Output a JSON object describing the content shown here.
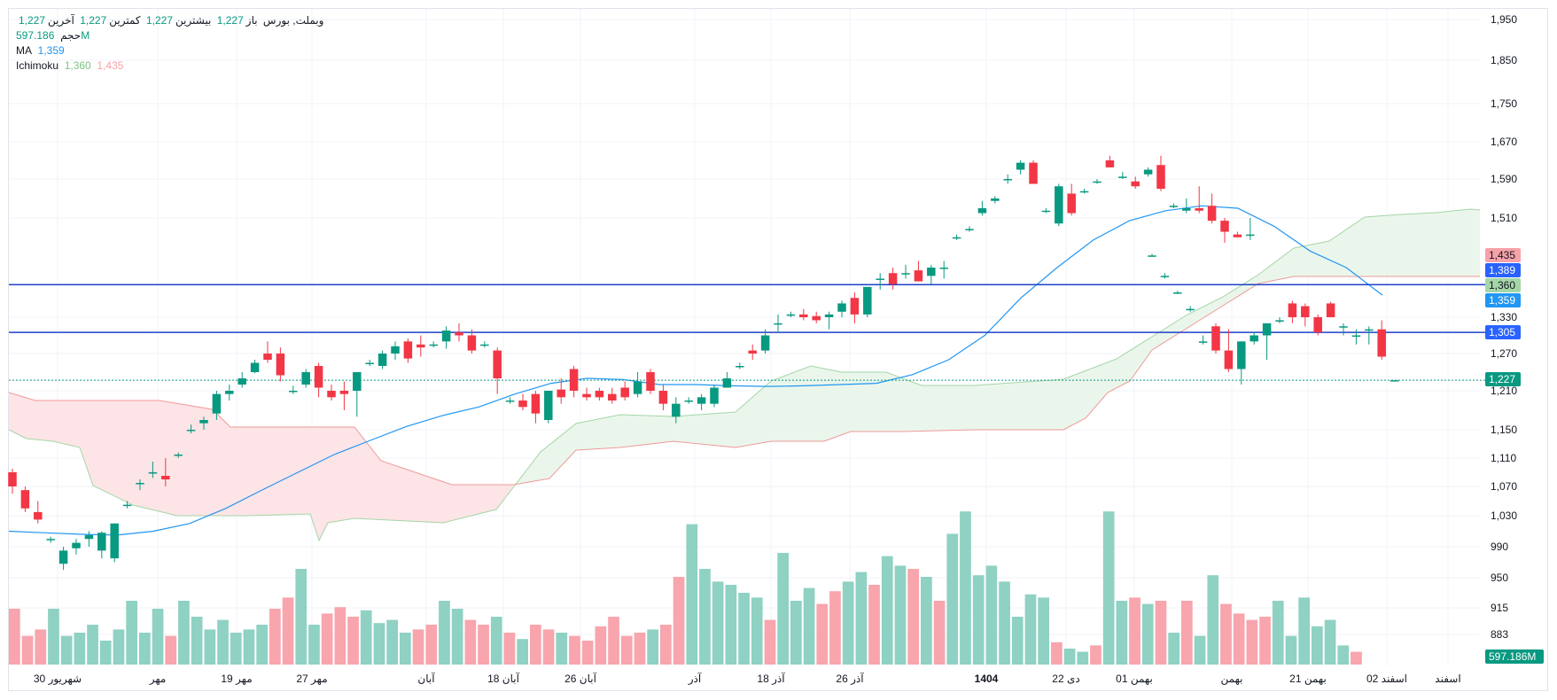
{
  "legend": {
    "symbol": "وبملت, بورس",
    "open_label": "باز",
    "open_value": "1,227",
    "high_label": "بیشترین",
    "high_value": "1,227",
    "low_label": "کمترین",
    "low_value": "1,227",
    "close_label": "آخرین",
    "close_value": "1,227",
    "volume_label": "حجم",
    "volume_value": "597.186M",
    "ma_label": "MA",
    "ma_value": "1,359",
    "ichimoku_label": "Ichimoku",
    "ichimoku_value_1": "1,360",
    "ichimoku_value_2": "1,435"
  },
  "colors": {
    "up": "#089981",
    "down": "#f23645",
    "up_volume": "#8fd1c3",
    "down_volume": "#f8a5ad",
    "ma": "#2196f3",
    "hline": "#1e40c8",
    "cloud_up_fill": "#e8f5e9",
    "cloud_down_fill": "#fde4e6",
    "span_a": "#a5d6a7",
    "span_b": "#ef9a9a"
  },
  "chart_data": {
    "type": "candlestick",
    "symbol": "وبملت",
    "y_axis_ticks": [
      "1,950",
      "1,850",
      "1,750",
      "1,670",
      "1,590",
      "1,510",
      "1,330",
      "1,270",
      "1,210",
      "1,150",
      "1,110",
      "1,070",
      "1,030",
      "990",
      "950",
      "915",
      "883"
    ],
    "x_axis_labels": [
      "30 شهریور",
      "مهر",
      "19 مهر",
      "27 مهر",
      "آبان",
      "18 آبان",
      "26 آبان",
      "آذر",
      "18 آذر",
      "26 آذر",
      "1404",
      "22 دی",
      "01 بهمن",
      "بهمن",
      "21 بهمن",
      "02 اسفند",
      "اسفند"
    ],
    "price_labels": [
      {
        "text": "1,435",
        "kind": "ichimoku_b"
      },
      {
        "text": "1,389",
        "kind": "hline"
      },
      {
        "text": "1,360",
        "kind": "ichimoku_a"
      },
      {
        "text": "1,359",
        "kind": "ma"
      },
      {
        "text": "1,305",
        "kind": "hline"
      },
      {
        "text": "1,227",
        "kind": "last"
      },
      {
        "text": "597.186M",
        "kind": "volume"
      }
    ],
    "horizontal_lines": [
      1389,
      1305
    ],
    "last_price": 1227,
    "candles": [
      [
        1090,
        1095,
        1060,
        1070
      ],
      [
        1065,
        1070,
        1035,
        1040
      ],
      [
        1035,
        1050,
        1020,
        1025
      ],
      [
        1000,
        1003,
        995,
        1000
      ],
      [
        968,
        990,
        960,
        985
      ],
      [
        988,
        1000,
        980,
        995
      ],
      [
        1000,
        1010,
        990,
        1005
      ],
      [
        985,
        1010,
        975,
        1008
      ],
      [
        975,
        1020,
        970,
        1020
      ],
      [
        1045,
        1050,
        1040,
        1045
      ],
      [
        1075,
        1080,
        1065,
        1075
      ],
      [
        1090,
        1105,
        1082,
        1090
      ],
      [
        1085,
        1110,
        1070,
        1080
      ],
      [
        1115,
        1118,
        1110,
        1115
      ],
      [
        1150,
        1158,
        1145,
        1150
      ],
      [
        1160,
        1170,
        1150,
        1165
      ],
      [
        1175,
        1210,
        1165,
        1205
      ],
      [
        1205,
        1220,
        1195,
        1210
      ],
      [
        1220,
        1240,
        1215,
        1230
      ],
      [
        1240,
        1260,
        1238,
        1255
      ],
      [
        1270,
        1290,
        1255,
        1260
      ],
      [
        1270,
        1280,
        1225,
        1235
      ],
      [
        1210,
        1218,
        1205,
        1210
      ],
      [
        1220,
        1245,
        1215,
        1240
      ],
      [
        1250,
        1255,
        1200,
        1215
      ],
      [
        1210,
        1220,
        1195,
        1200
      ],
      [
        1210,
        1225,
        1180,
        1205
      ],
      [
        1210,
        1240,
        1170,
        1240
      ],
      [
        1255,
        1260,
        1250,
        1255
      ],
      [
        1250,
        1275,
        1245,
        1270
      ],
      [
        1270,
        1290,
        1260,
        1282
      ],
      [
        1290,
        1295,
        1255,
        1262
      ],
      [
        1285,
        1300,
        1265,
        1280
      ],
      [
        1285,
        1290,
        1280,
        1285
      ],
      [
        1290,
        1315,
        1278,
        1308
      ],
      [
        1305,
        1320,
        1290,
        1300
      ],
      [
        1300,
        1310,
        1270,
        1275
      ],
      [
        1285,
        1290,
        1280,
        1285
      ],
      [
        1275,
        1280,
        1205,
        1230
      ],
      [
        1195,
        1200,
        1190,
        1195
      ],
      [
        1195,
        1205,
        1180,
        1185
      ],
      [
        1205,
        1210,
        1160,
        1175
      ],
      [
        1165,
        1210,
        1160,
        1210
      ],
      [
        1212,
        1230,
        1190,
        1200
      ],
      [
        1245,
        1250,
        1200,
        1210
      ],
      [
        1205,
        1215,
        1195,
        1200
      ],
      [
        1210,
        1215,
        1195,
        1200
      ],
      [
        1205,
        1215,
        1190,
        1195
      ],
      [
        1215,
        1225,
        1195,
        1200
      ],
      [
        1205,
        1240,
        1200,
        1225
      ],
      [
        1240,
        1245,
        1205,
        1210
      ],
      [
        1210,
        1220,
        1180,
        1190
      ],
      [
        1170,
        1200,
        1160,
        1190
      ],
      [
        1195,
        1200,
        1190,
        1195
      ],
      [
        1190,
        1205,
        1180,
        1200
      ],
      [
        1190,
        1220,
        1185,
        1215
      ],
      [
        1215,
        1240,
        1215,
        1230
      ],
      [
        1250,
        1255,
        1245,
        1250
      ],
      [
        1275,
        1285,
        1260,
        1270
      ],
      [
        1275,
        1310,
        1270,
        1300
      ],
      [
        1320,
        1335,
        1305,
        1320
      ],
      [
        1335,
        1340,
        1330,
        1335
      ],
      [
        1335,
        1345,
        1325,
        1330
      ],
      [
        1332,
        1340,
        1320,
        1325
      ],
      [
        1330,
        1340,
        1310,
        1335
      ],
      [
        1340,
        1360,
        1330,
        1355
      ],
      [
        1365,
        1375,
        1320,
        1335
      ],
      [
        1335,
        1385,
        1330,
        1385
      ],
      [
        1400,
        1410,
        1380,
        1400
      ],
      [
        1410,
        1420,
        1380,
        1390
      ],
      [
        1410,
        1425,
        1400,
        1410
      ],
      [
        1415,
        1432,
        1395,
        1395
      ],
      [
        1405,
        1425,
        1390,
        1420
      ],
      [
        1420,
        1432,
        1400,
        1420
      ],
      [
        1475,
        1480,
        1470,
        1475
      ],
      [
        1490,
        1495,
        1485,
        1490
      ],
      [
        1520,
        1545,
        1515,
        1530
      ],
      [
        1545,
        1555,
        1540,
        1550
      ],
      [
        1590,
        1600,
        1580,
        1590
      ],
      [
        1610,
        1630,
        1600,
        1625
      ],
      [
        1625,
        1630,
        1580,
        1580
      ],
      [
        1525,
        1530,
        1520,
        1525
      ],
      [
        1500,
        1580,
        1495,
        1575
      ],
      [
        1560,
        1580,
        1515,
        1520
      ],
      [
        1565,
        1570,
        1560,
        1565
      ],
      [
        1585,
        1590,
        1580,
        1585
      ],
      [
        1630,
        1640,
        1615,
        1615
      ],
      [
        1595,
        1605,
        1590,
        1595
      ],
      [
        1585,
        1595,
        1570,
        1575
      ],
      [
        1600,
        1615,
        1595,
        1610
      ],
      [
        1620,
        1640,
        1565,
        1570
      ],
      [
        1535,
        1540,
        1530,
        1535
      ],
      [
        1525,
        1550,
        1520,
        1530
      ],
      [
        1530,
        1575,
        1520,
        1525
      ],
      [
        1535,
        1560,
        1500,
        1505
      ],
      [
        1505,
        1510,
        1465,
        1485
      ],
      [
        1480,
        1485,
        1475,
        1475
      ],
      [
        1480,
        1510,
        1470,
        1480
      ]
    ],
    "late_candles": [
      [
        1442,
        1445,
        1440,
        1442
      ],
      [
        1405,
        1410,
        1400,
        1405
      ],
      [
        1375,
        1378,
        1372,
        1375
      ],
      [
        1345,
        1350,
        1340,
        1345
      ],
      [
        1290,
        1300,
        1285,
        1290
      ],
      [
        1315,
        1320,
        1270,
        1275
      ],
      [
        1275,
        1310,
        1240,
        1245
      ],
      [
        1245,
        1290,
        1220,
        1290
      ],
      [
        1290,
        1305,
        1285,
        1300
      ],
      [
        1300,
        1320,
        1260,
        1320
      ],
      [
        1325,
        1330,
        1320,
        1325
      ],
      [
        1355,
        1360,
        1320,
        1330
      ],
      [
        1350,
        1355,
        1315,
        1330
      ],
      [
        1330,
        1335,
        1300,
        1305
      ],
      [
        1355,
        1358,
        1330,
        1330
      ],
      [
        1315,
        1320,
        1300,
        1315
      ],
      [
        1300,
        1310,
        1285,
        1300
      ],
      [
        1310,
        1315,
        1285,
        1310
      ],
      [
        1310,
        1325,
        1260,
        1265
      ],
      [
        1227,
        1227,
        1227,
        1227
      ]
    ],
    "ma_values": [
      1010,
      1008,
      1006,
      1005,
      1010,
      1020,
      1040,
      1065,
      1090,
      1115,
      1135,
      1155,
      1172,
      1185,
      1205,
      1222,
      1230,
      1228,
      1220,
      1220,
      1218,
      1217,
      1218,
      1220,
      1222,
      1236,
      1260,
      1300,
      1365,
      1420,
      1470,
      1505,
      1525,
      1535,
      1530,
      1495,
      1450,
      1420,
      1370
    ],
    "volume_values": [
      35,
      18,
      22,
      35,
      18,
      20,
      25,
      15,
      22,
      40,
      20,
      35,
      18,
      40,
      30,
      22,
      28,
      20,
      22,
      25,
      35,
      42,
      60,
      25,
      32,
      36,
      30,
      34,
      26,
      28,
      20,
      22,
      25,
      40,
      35,
      28,
      25,
      30,
      20,
      16,
      25,
      22,
      20,
      18,
      15,
      24,
      30,
      18,
      20,
      22,
      25,
      55,
      88,
      60,
      52,
      50,
      45,
      42,
      28,
      70,
      40,
      48,
      38,
      46,
      52,
      58,
      50,
      68,
      62,
      60,
      55,
      40,
      82,
      96,
      56,
      62,
      52,
      30,
      44,
      42,
      14,
      10,
      8,
      12,
      96,
      40,
      42,
      38,
      40,
      20,
      40,
      18,
      56,
      38,
      32,
      28,
      30,
      40,
      18,
      42,
      24,
      28,
      12,
      8
    ]
  }
}
